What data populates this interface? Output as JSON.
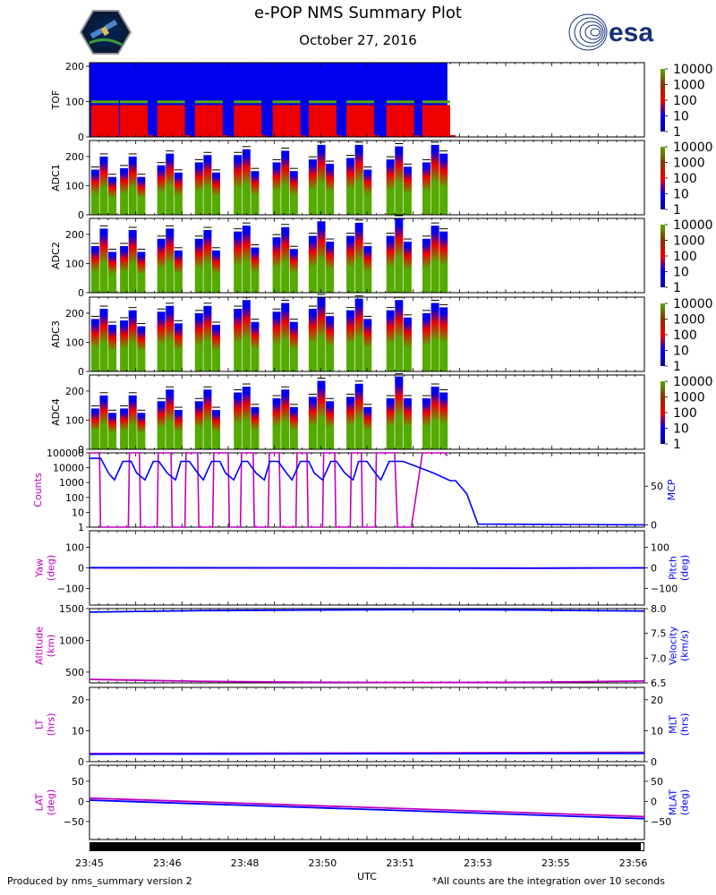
{
  "header": {
    "title": "e-POP NMS Summary Plot",
    "date": "October 27, 2016",
    "esa_logo_text": "esa"
  },
  "footer": {
    "left": "Produced by nms_summary version 2",
    "right": "*All counts are the integration over 10 seconds"
  },
  "colors": {
    "magenta": "#c000c0",
    "blue": "#0000ff",
    "spectro_blue": "#0000ee",
    "spectro_red": "#ee0000",
    "spectro_green": "#55aa00"
  },
  "chart_data": [
    {
      "type": "heatmap",
      "ylabel": "TOF",
      "yticks": [
        "0",
        "100",
        "200"
      ],
      "ylim": [
        0,
        210
      ],
      "colorbar_ticks": [
        "1",
        "10",
        "100",
        "1000",
        "10000"
      ]
    },
    {
      "type": "heatmap",
      "ylabel": "ADC1",
      "yticks": [
        "0",
        "100",
        "200"
      ],
      "ylim": [
        0,
        255
      ],
      "colorbar_ticks": [
        "1",
        "10",
        "100",
        "1000",
        "10000"
      ],
      "burst_maxima": [
        [
          155,
          200,
          130
        ],
        [
          160,
          200,
          130
        ],
        [
          170,
          210,
          145
        ],
        [
          180,
          205,
          145
        ],
        [
          205,
          225,
          150
        ],
        [
          180,
          220,
          150
        ],
        [
          190,
          240,
          175
        ],
        [
          195,
          240,
          155
        ],
        [
          190,
          235,
          165
        ],
        [
          180,
          240,
          210
        ]
      ]
    },
    {
      "type": "heatmap",
      "ylabel": "ADC2",
      "yticks": [
        "0",
        "100",
        "200"
      ],
      "ylim": [
        0,
        255
      ],
      "colorbar_ticks": [
        "1",
        "10",
        "100",
        "1000",
        "10000"
      ],
      "burst_maxima": [
        [
          160,
          220,
          140
        ],
        [
          160,
          215,
          140
        ],
        [
          185,
          220,
          145
        ],
        [
          185,
          215,
          145
        ],
        [
          210,
          230,
          155
        ],
        [
          190,
          225,
          150
        ],
        [
          195,
          245,
          175
        ],
        [
          195,
          240,
          160
        ],
        [
          195,
          255,
          175
        ],
        [
          185,
          230,
          210
        ]
      ]
    },
    {
      "type": "heatmap",
      "ylabel": "ADC3",
      "yticks": [
        "0",
        "100",
        "200"
      ],
      "ylim": [
        0,
        255
      ],
      "colorbar_ticks": [
        "1",
        "10",
        "100",
        "1000",
        "10000"
      ],
      "burst_maxima": [
        [
          180,
          215,
          160
        ],
        [
          175,
          210,
          155
        ],
        [
          205,
          225,
          165
        ],
        [
          200,
          225,
          160
        ],
        [
          215,
          245,
          170
        ],
        [
          205,
          235,
          170
        ],
        [
          215,
          255,
          190
        ],
        [
          210,
          250,
          180
        ],
        [
          210,
          245,
          185
        ],
        [
          200,
          235,
          220
        ]
      ]
    },
    {
      "type": "heatmap",
      "ylabel": "ADC4",
      "yticks": [
        "0",
        "100",
        "200"
      ],
      "ylim": [
        0,
        255
      ],
      "colorbar_ticks": [
        "1",
        "10",
        "100",
        "1000",
        "10000"
      ],
      "burst_maxima": [
        [
          140,
          185,
          125
        ],
        [
          140,
          185,
          125
        ],
        [
          165,
          205,
          135
        ],
        [
          165,
          205,
          135
        ],
        [
          195,
          215,
          145
        ],
        [
          175,
          205,
          145
        ],
        [
          180,
          235,
          165
        ],
        [
          180,
          225,
          145
        ],
        [
          175,
          250,
          175
        ],
        [
          175,
          215,
          195
        ]
      ]
    },
    {
      "type": "line",
      "ylabel_left": "Counts",
      "ylabel_right": "MCP",
      "yticks_left": [
        "1",
        "10",
        "100",
        "1000",
        "10000",
        "100000"
      ],
      "yticks_right": [
        "0",
        "50"
      ],
      "ylim_left_log10": [
        0,
        5
      ],
      "ylim_right": [
        -3,
        93
      ],
      "series": [
        {
          "name": "",
          "axis": "left",
          "color": "#c000c0",
          "x": [
            0,
            0.018,
            0.02,
            0.07,
            0.072,
            0.09,
            0.092,
            0.122,
            0.124,
            0.147,
            0.149,
            0.172,
            0.174,
            0.195,
            0.197,
            0.222,
            0.224,
            0.25,
            0.252,
            0.272,
            0.274,
            0.295,
            0.297,
            0.322,
            0.324,
            0.342,
            0.344,
            0.372,
            0.374,
            0.392,
            0.394,
            0.42,
            0.422,
            0.442,
            0.444,
            0.47,
            0.472,
            0.49,
            0.492,
            0.515,
            0.517,
            0.55,
            0.555,
            0.58,
            0.6,
            0.64,
            0.645
          ],
          "y_log10": [
            5,
            5,
            0,
            0,
            5,
            5,
            0,
            0,
            5,
            5,
            0,
            0,
            5,
            5,
            0,
            0,
            5,
            5,
            0,
            0,
            5,
            5,
            0,
            0,
            5,
            5,
            0,
            0,
            5,
            5,
            0,
            0,
            5,
            5,
            0,
            0,
            5,
            5,
            0,
            0,
            5,
            5,
            0,
            0,
            5,
            5,
            4.8
          ]
        },
        {
          "name": "",
          "axis": "right",
          "color": "#0000ff",
          "x": [
            0,
            0.02,
            0.035,
            0.045,
            0.06,
            0.075,
            0.085,
            0.1,
            0.115,
            0.125,
            0.14,
            0.155,
            0.165,
            0.18,
            0.195,
            0.205,
            0.22,
            0.235,
            0.245,
            0.26,
            0.275,
            0.285,
            0.3,
            0.315,
            0.325,
            0.34,
            0.355,
            0.365,
            0.38,
            0.395,
            0.405,
            0.42,
            0.435,
            0.445,
            0.46,
            0.475,
            0.485,
            0.5,
            0.515,
            0.525,
            0.54,
            0.565,
            0.62,
            0.65,
            0.66,
            0.68,
            0.7,
            1
          ],
          "y": [
            86,
            86,
            66,
            58,
            82,
            82,
            67,
            58,
            82,
            82,
            67,
            58,
            82,
            82,
            67,
            58,
            82,
            82,
            67,
            58,
            82,
            82,
            67,
            58,
            82,
            82,
            67,
            58,
            82,
            82,
            67,
            58,
            82,
            82,
            67,
            58,
            82,
            82,
            67,
            58,
            82,
            82,
            67,
            57,
            57,
            40,
            1,
            0
          ]
        }
      ]
    },
    {
      "type": "line",
      "ylabel_left": "Yaw\n(deg)",
      "ylabel_right": "Pitch\n(deg)",
      "yticks": [
        "−100",
        "0",
        "100"
      ],
      "ylim": [
        -180,
        180
      ],
      "series": [
        {
          "name": "",
          "axis": "left",
          "color": "#c000c0",
          "x": [
            0,
            0.5,
            0.8,
            1
          ],
          "y": [
            0,
            -1,
            -2,
            0
          ]
        },
        {
          "name": "",
          "axis": "right",
          "color": "#0000ff",
          "x": [
            0,
            0.5,
            0.8,
            1
          ],
          "y": [
            1,
            0,
            -1,
            0
          ]
        }
      ]
    },
    {
      "type": "line",
      "ylabel_left": "Altitude\n(km)",
      "ylabel_right": "Velocity\n(km/s)",
      "yticks_left": [
        "500",
        "1000",
        "1500"
      ],
      "yticks_right": [
        "6.5",
        "7.0",
        "7.5",
        "8.0"
      ],
      "ylim_left": [
        330,
        1500
      ],
      "ylim_right": [
        6.5,
        8.0
      ],
      "series": [
        {
          "name": "",
          "axis": "left",
          "color": "#c000c0",
          "x": [
            0,
            0.2,
            0.4,
            0.6,
            0.8,
            1
          ],
          "y": [
            385,
            355,
            340,
            335,
            340,
            360
          ]
        },
        {
          "name": "",
          "axis": "right",
          "color": "#0000ff",
          "x": [
            0,
            0.2,
            0.4,
            0.6,
            0.8,
            1
          ],
          "y": [
            7.93,
            7.96,
            7.97,
            7.98,
            7.97,
            7.95
          ]
        }
      ]
    },
    {
      "type": "line",
      "ylabel_left": "LT\n(hrs)",
      "ylabel_right": "MLT\n(hrs)",
      "yticks": [
        "0",
        "10",
        "20"
      ],
      "ylim": [
        0,
        24
      ],
      "series": [
        {
          "name": "",
          "axis": "left",
          "color": "#c000c0",
          "x": [
            0,
            1
          ],
          "y": [
            2.6,
            3.0
          ]
        },
        {
          "name": "",
          "axis": "right",
          "color": "#0000ff",
          "x": [
            0,
            1
          ],
          "y": [
            2.4,
            2.7
          ]
        }
      ]
    },
    {
      "type": "line",
      "ylabel_left": "LAT\n(deg)",
      "ylabel_right": "MLAT\n(deg)",
      "yticks": [
        "−50",
        "0",
        "50"
      ],
      "ylim": [
        -95,
        90
      ],
      "series": [
        {
          "name": "",
          "axis": "left",
          "color": "#c000c0",
          "x": [
            0,
            1
          ],
          "y": [
            8,
            -38
          ]
        },
        {
          "name": "",
          "axis": "right",
          "color": "#0000ff",
          "x": [
            0,
            1
          ],
          "y": [
            3,
            -43
          ]
        }
      ]
    }
  ],
  "xaxis": {
    "label": "UTC",
    "ticks": [
      "23:45",
      "23:46",
      "23:48",
      "23:50",
      "23:51",
      "23:53",
      "23:55",
      "23:56"
    ]
  }
}
